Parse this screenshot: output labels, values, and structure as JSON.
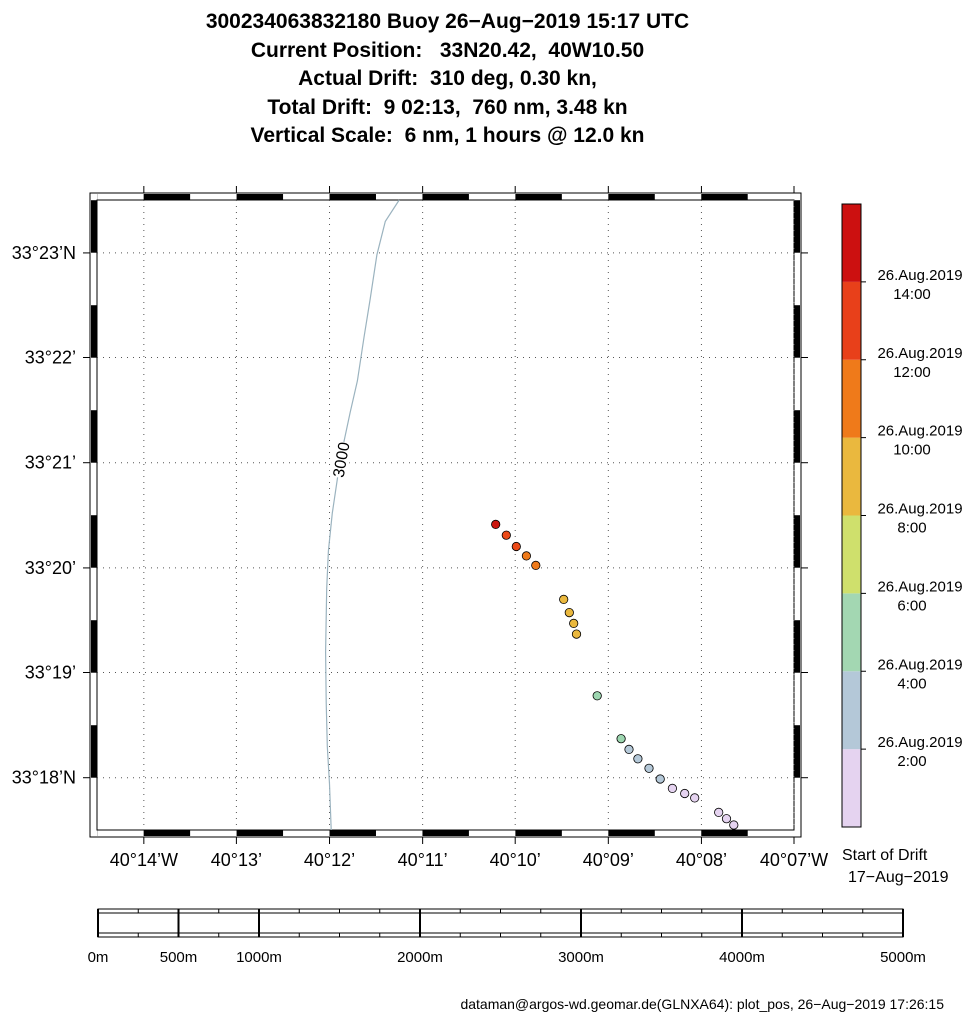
{
  "header": {
    "line1": "300234063832180 Buoy 26−Aug−2019 15:17 UTC",
    "line2": "Current Position:   33N20.42,  40W10.50",
    "line3": "Actual Drift:  310 deg, 0.30 kn,",
    "line4": "Total Drift:  9 02:13,  760 nm, 3.48 kn",
    "line5": "Vertical Scale:  6 nm, 1 hours @ 12.0 kn"
  },
  "map": {
    "lon_range": [
      -40.2417,
      -40.1167
    ],
    "lat_range": [
      33.2917,
      33.3917
    ],
    "lon_ticks": [
      {
        "value": -40.2333,
        "label": "40°14’W"
      },
      {
        "value": -40.2167,
        "label": "40°13’"
      },
      {
        "value": -40.2,
        "label": "40°12’"
      },
      {
        "value": -40.1833,
        "label": "40°11’"
      },
      {
        "value": -40.1667,
        "label": "40°10’"
      },
      {
        "value": -40.15,
        "label": "40°09’"
      },
      {
        "value": -40.1333,
        "label": "40°08’"
      },
      {
        "value": -40.1167,
        "label": "40°07’W"
      }
    ],
    "lat_ticks": [
      {
        "value": 33.3833,
        "label": "33°23’N"
      },
      {
        "value": 33.3667,
        "label": "33°22’"
      },
      {
        "value": 33.35,
        "label": "33°21’"
      },
      {
        "value": 33.3333,
        "label": "33°20’"
      },
      {
        "value": 33.3167,
        "label": "33°19’"
      },
      {
        "value": 33.3,
        "label": "33°18’N"
      }
    ],
    "grid": true,
    "contour": {
      "label": "3000",
      "color": "#9bb3bf",
      "points": [
        [
          -40.1875,
          33.3917
        ],
        [
          -40.19,
          33.3883
        ],
        [
          -40.1915,
          33.383
        ],
        [
          -40.1927,
          33.376
        ],
        [
          -40.1938,
          33.37
        ],
        [
          -40.195,
          33.363
        ],
        [
          -40.1963,
          33.358
        ],
        [
          -40.1975,
          33.353
        ],
        [
          -40.1985,
          33.348
        ],
        [
          -40.1995,
          33.342
        ],
        [
          -40.2002,
          33.336
        ],
        [
          -40.2005,
          33.33
        ],
        [
          -40.2007,
          33.32
        ],
        [
          -40.2006,
          33.312
        ],
        [
          -40.2004,
          33.305
        ],
        [
          -40.2,
          33.299
        ],
        [
          -40.1997,
          33.2917
        ]
      ]
    },
    "drift_points": [
      {
        "lon": -40.1275,
        "lat": 33.2925,
        "color": "#e5d3f0"
      },
      {
        "lon": -40.1288,
        "lat": 33.2935,
        "color": "#e5d3f0"
      },
      {
        "lon": -40.1302,
        "lat": 33.2945,
        "color": "#e5d3f0"
      },
      {
        "lon": -40.1345,
        "lat": 33.2968,
        "color": "#e5d3f0"
      },
      {
        "lon": -40.1363,
        "lat": 33.2975,
        "color": "#e5d3f0"
      },
      {
        "lon": -40.1385,
        "lat": 33.2983,
        "color": "#e5d3f0"
      },
      {
        "lon": -40.1407,
        "lat": 33.2998,
        "color": "#b4c8d8"
      },
      {
        "lon": -40.1427,
        "lat": 33.3015,
        "color": "#b4c8d8"
      },
      {
        "lon": -40.1447,
        "lat": 33.303,
        "color": "#b4c8d8"
      },
      {
        "lon": -40.1463,
        "lat": 33.3045,
        "color": "#b4c8d8"
      },
      {
        "lon": -40.1477,
        "lat": 33.3062,
        "color": "#9dd6b0"
      },
      {
        "lon": -40.152,
        "lat": 33.313,
        "color": "#9dd6b0"
      },
      {
        "lon": -40.1557,
        "lat": 33.3228,
        "color": "#eab83e"
      },
      {
        "lon": -40.1562,
        "lat": 33.3245,
        "color": "#eab83e"
      },
      {
        "lon": -40.157,
        "lat": 33.3262,
        "color": "#eab83e"
      },
      {
        "lon": -40.158,
        "lat": 33.3283,
        "color": "#eab83e"
      },
      {
        "lon": -40.163,
        "lat": 33.3337,
        "color": "#ef7a1a"
      },
      {
        "lon": -40.1647,
        "lat": 33.3352,
        "color": "#ef7a1a"
      },
      {
        "lon": -40.1665,
        "lat": 33.3367,
        "color": "#ec4a18"
      },
      {
        "lon": -40.1683,
        "lat": 33.3385,
        "color": "#ec4a18"
      },
      {
        "lon": -40.1702,
        "lat": 33.3402,
        "color": "#cc1810"
      }
    ]
  },
  "colorbar": {
    "bands": [
      {
        "color": "#e5d3f0"
      },
      {
        "color": "#b4c8d8"
      },
      {
        "color": "#a3d7b2"
      },
      {
        "color": "#cfe06c"
      },
      {
        "color": "#eab83e"
      },
      {
        "color": "#ef7a1a"
      },
      {
        "color": "#e8401a"
      },
      {
        "color": "#cc1010"
      }
    ],
    "labels": [
      {
        "date": "26.Aug.2019",
        "time": "2:00"
      },
      {
        "date": "26.Aug.2019",
        "time": "4:00"
      },
      {
        "date": "26.Aug.2019",
        "time": "6:00"
      },
      {
        "date": "26.Aug.2019",
        "time": "8:00"
      },
      {
        "date": "26.Aug.2019",
        "time": "10:00"
      },
      {
        "date": "26.Aug.2019",
        "time": "12:00"
      },
      {
        "date": "26.Aug.2019",
        "time": "14:00"
      }
    ],
    "start_label": "Start of Drift",
    "start_date": "17−Aug−2019"
  },
  "scalebar": {
    "range_m": [
      0,
      5000
    ],
    "labels": [
      {
        "m": 0,
        "text": "0m"
      },
      {
        "m": 500,
        "text": "500m"
      },
      {
        "m": 1000,
        "text": "1000m"
      },
      {
        "m": 2000,
        "text": "2000m"
      },
      {
        "m": 3000,
        "text": "3000m"
      },
      {
        "m": 4000,
        "text": "4000m"
      },
      {
        "m": 5000,
        "text": "5000m"
      }
    ]
  },
  "footer": {
    "credit": "dataman@argos-wd.geomar.de(GLNXA64): plot_pos, 26−Aug−2019 17:26:15"
  }
}
